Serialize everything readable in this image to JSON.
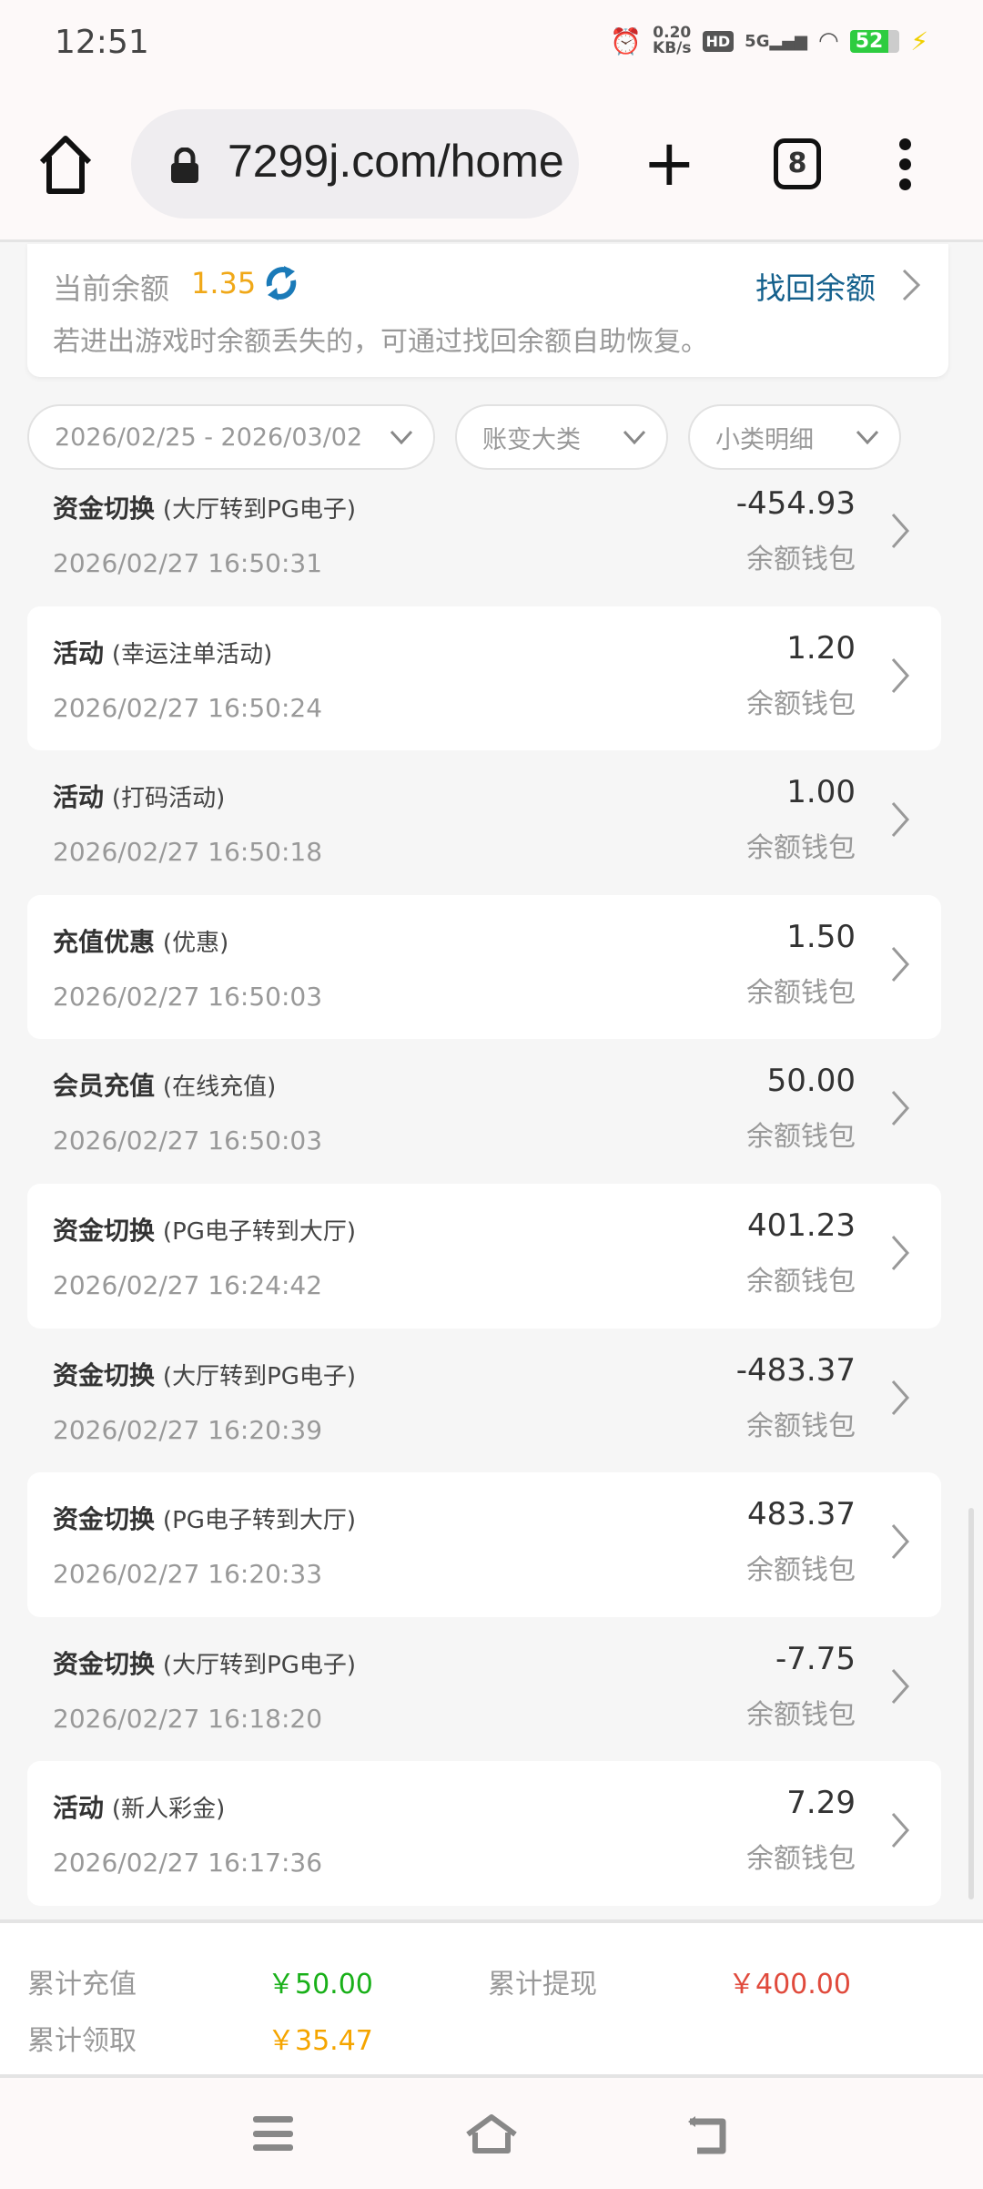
{
  "status": {
    "time": "12:51",
    "net_speed": "0.20",
    "net_unit": "KB/s",
    "hd": "HD",
    "signal": "5G",
    "battery": "52"
  },
  "browser": {
    "url": "7299j.com/home",
    "tab_count": "8"
  },
  "balance": {
    "label": "当前余额",
    "amount": "1.35",
    "recover_label": "找回余额",
    "tip": "若进出游戏时余额丢失的，可通过找回余额自助恢复。"
  },
  "filters": {
    "date_range": "2026/02/25 - 2026/03/02",
    "category": "账变大类",
    "subcategory": "小类明细"
  },
  "transactions": [
    {
      "type": "资金切换",
      "detail": "(大厅转到PG电子)",
      "time": "2026/02/27 16:50:31",
      "amount": "-454.93",
      "wallet": "余额钱包"
    },
    {
      "type": "活动",
      "detail": "(幸运注单活动)",
      "time": "2026/02/27 16:50:24",
      "amount": "1.20",
      "wallet": "余额钱包"
    },
    {
      "type": "活动",
      "detail": "(打码活动)",
      "time": "2026/02/27 16:50:18",
      "amount": "1.00",
      "wallet": "余额钱包"
    },
    {
      "type": "充值优惠",
      "detail": "(优惠)",
      "time": "2026/02/27 16:50:03",
      "amount": "1.50",
      "wallet": "余额钱包"
    },
    {
      "type": "会员充值",
      "detail": "(在线充值)",
      "time": "2026/02/27 16:50:03",
      "amount": "50.00",
      "wallet": "余额钱包"
    },
    {
      "type": "资金切换",
      "detail": "(PG电子转到大厅)",
      "time": "2026/02/27 16:24:42",
      "amount": "401.23",
      "wallet": "余额钱包"
    },
    {
      "type": "资金切换",
      "detail": "(大厅转到PG电子)",
      "time": "2026/02/27 16:20:39",
      "amount": "-483.37",
      "wallet": "余额钱包"
    },
    {
      "type": "资金切换",
      "detail": "(PG电子转到大厅)",
      "time": "2026/02/27 16:20:33",
      "amount": "483.37",
      "wallet": "余额钱包"
    },
    {
      "type": "资金切换",
      "detail": "(大厅转到PG电子)",
      "time": "2026/02/27 16:18:20",
      "amount": "-7.75",
      "wallet": "余额钱包"
    },
    {
      "type": "活动",
      "detail": "(新人彩金)",
      "time": "2026/02/27 16:17:36",
      "amount": "7.29",
      "wallet": "余额钱包"
    }
  ],
  "summary": {
    "deposit_label": "累计充值",
    "deposit": "￥50.00",
    "withdraw_label": "累计提现",
    "withdraw": "￥400.00",
    "claimed_label": "累计领取",
    "claimed": "￥35.47"
  },
  "colors": {
    "balance": "#f0a818",
    "link": "#14608c",
    "deposit": "#19b019",
    "withdraw": "#e04a3c",
    "claimed": "#f5a500"
  }
}
